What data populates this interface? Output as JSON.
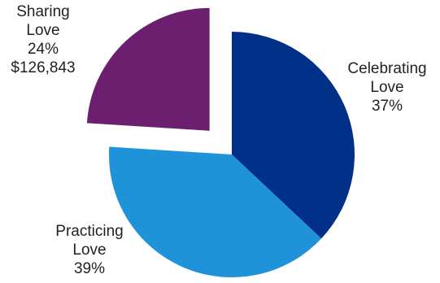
{
  "chart_data": {
    "type": "pie",
    "title": "",
    "start_angle_deg": 0,
    "direction": "clockwise",
    "slices": [
      {
        "name": "Celebrating Love",
        "label_lines": [
          "Celebrating",
          "Love",
          "37%"
        ],
        "percent": 37,
        "color": "#003087",
        "exploded": false
      },
      {
        "name": "Practicing Love",
        "label_lines": [
          "Practicing",
          "Love",
          "39%"
        ],
        "percent": 39,
        "color": "#1f92d9",
        "exploded": false
      },
      {
        "name": "Sharing Love",
        "label_lines": [
          "Sharing",
          "Love",
          "24%",
          "$126,843"
        ],
        "percent": 24,
        "value_label": "$126,843",
        "color": "#6b1f6e",
        "exploded": true
      }
    ]
  }
}
